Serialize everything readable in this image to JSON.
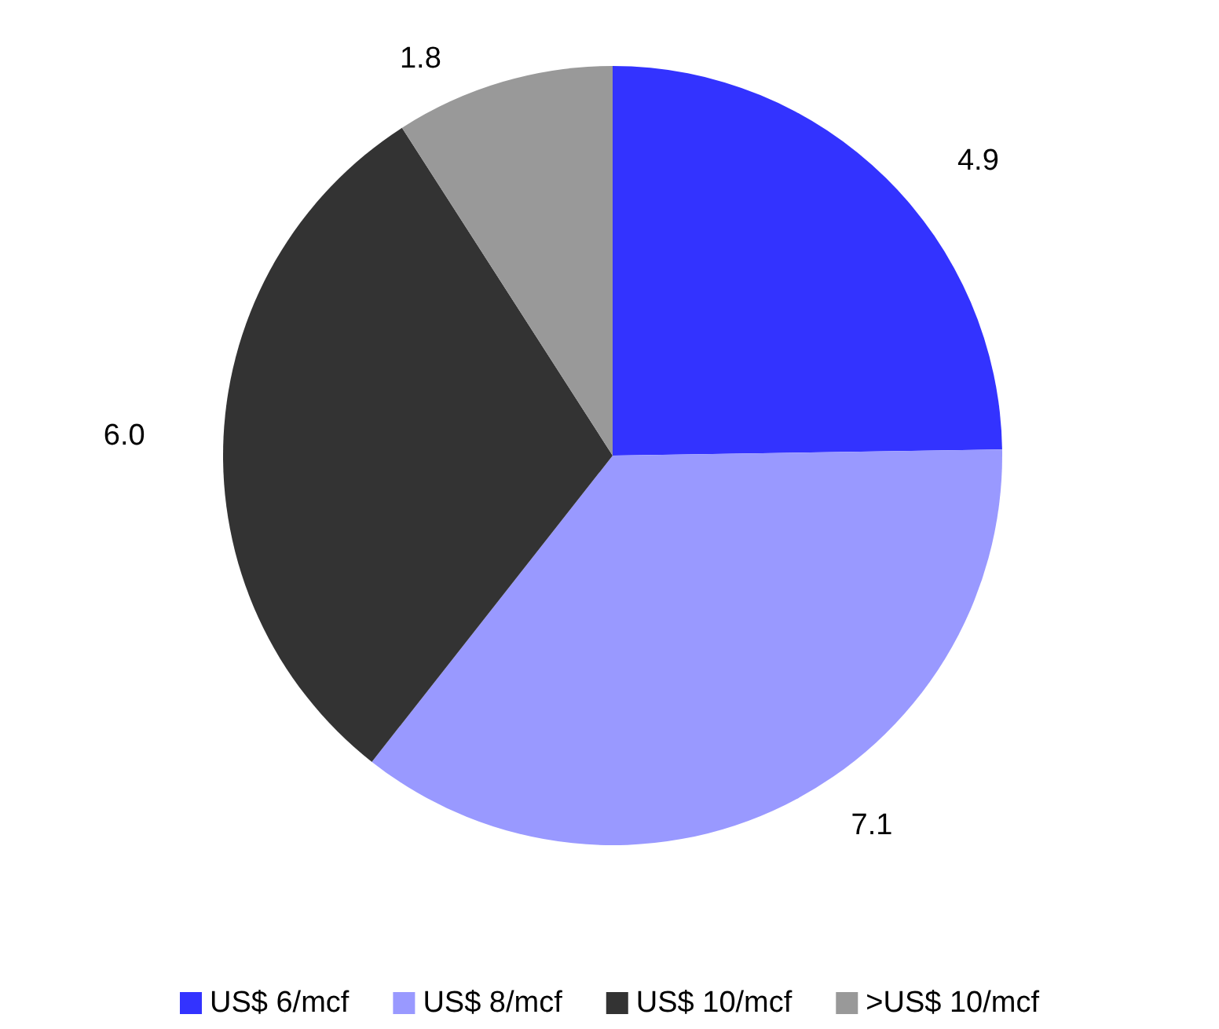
{
  "chart_data": {
    "type": "pie",
    "categories": [
      "US$ 6/mcf",
      "US$ 8/mcf",
      "US$ 10/mcf",
      ">US$ 10/mcf"
    ],
    "values": [
      4.9,
      7.1,
      6.0,
      1.8
    ],
    "colors": [
      "#3333ff",
      "#9999ff",
      "#333333",
      "#999999"
    ],
    "value_labels": [
      "4.9",
      "7.1",
      "6.0",
      "1.8"
    ],
    "legend": "bottom"
  }
}
